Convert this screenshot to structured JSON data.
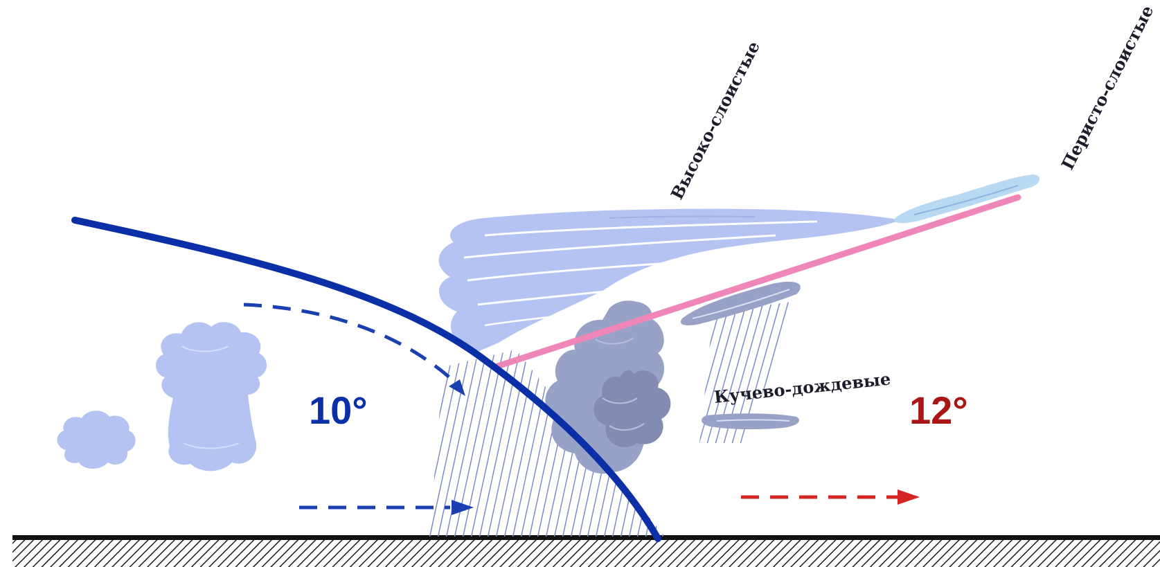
{
  "labels": {
    "altostratus": "Высоко-слоистые",
    "cirrostratus": "Перисто-слоистые",
    "cumulonimbus": "Кучево-дождевые",
    "temp_cold": "10°",
    "temp_warm": "12°"
  },
  "colors": {
    "cold_front": "#0b2fa6",
    "cold_arrow": "#1a3fb0",
    "warm_arrow": "#d42424",
    "warm_temp": "#a81616",
    "warm_front": "#ef86b8",
    "cloud_light": "#b4c3f2",
    "cloud_gray": "#98a2c6",
    "cloud_dark": "#838bb0",
    "ground": "#111111",
    "rain": "#7e8cc4"
  }
}
